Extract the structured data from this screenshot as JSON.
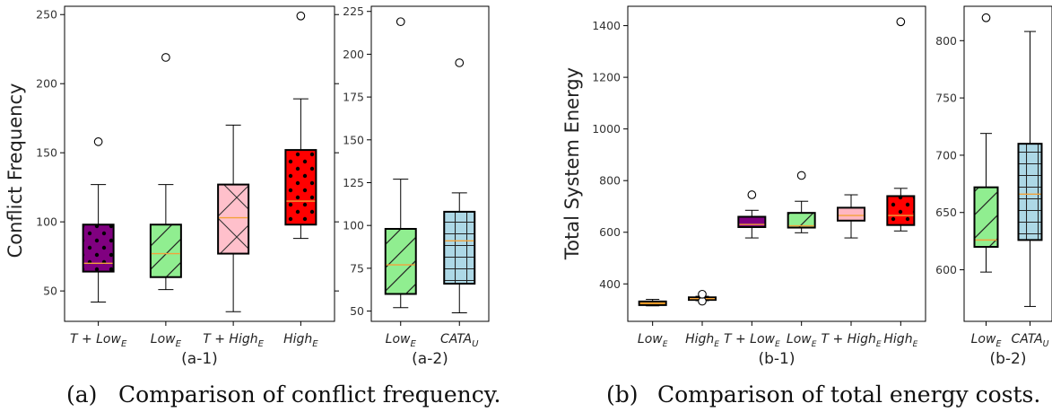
{
  "captions": {
    "a": {
      "label": "(a)",
      "text": "Comparison of conflict frequency."
    },
    "b": {
      "label": "(b)",
      "text": "Comparison of total energy costs."
    }
  },
  "colors": {
    "purple": "#800080",
    "lightgreen": "#90ee90",
    "pink": "#ffc0cb",
    "red": "#ff0000",
    "lightblue": "#add8e6",
    "orange": "#ffa500",
    "lightpink": "#ffb6c1"
  },
  "chart_data": [
    {
      "id": "a1",
      "type": "box",
      "subtitle": "(a-1)",
      "ylabel": "Conflict Frequency",
      "ylim": [
        28,
        256
      ],
      "yticks": [
        50,
        100,
        150,
        200,
        250
      ],
      "ytick_side": "left",
      "categories": [
        {
          "main": "T + Low",
          "sub": "E"
        },
        {
          "main": "Low",
          "sub": "E"
        },
        {
          "main": "T + High",
          "sub": "E"
        },
        {
          "main": "High",
          "sub": "E"
        }
      ],
      "boxes": [
        {
          "whislo": 42,
          "q1": 64,
          "med": 70,
          "q3": 98,
          "whishi": 127,
          "fliers": [
            158
          ],
          "color": "#800080",
          "hatch": "dots"
        },
        {
          "whislo": 51,
          "q1": 60,
          "med": 77,
          "q3": 98,
          "whishi": 127,
          "fliers": [
            219
          ],
          "color": "#90ee90",
          "hatch": "diag"
        },
        {
          "whislo": 35,
          "q1": 77,
          "med": 103,
          "q3": 127,
          "whishi": 170,
          "fliers": [],
          "color": "#ffc0cb",
          "hatch": "cross"
        },
        {
          "whislo": 88,
          "q1": 98,
          "med": 115,
          "q3": 152,
          "whishi": 189,
          "fliers": [
            249
          ],
          "color": "#ff0000",
          "hatch": "dots"
        }
      ]
    },
    {
      "id": "a2",
      "type": "box",
      "subtitle": "(a-2)",
      "ylabel": "",
      "ylim": [
        44,
        228
      ],
      "yticks": [
        50,
        75,
        100,
        125,
        150,
        175,
        200,
        225
      ],
      "ytick_side": "left",
      "categories": [
        {
          "main": "Low",
          "sub": "E"
        },
        {
          "main": "CATA",
          "sub": "U"
        }
      ],
      "boxes": [
        {
          "whislo": 52,
          "q1": 60,
          "med": 77,
          "q3": 98,
          "whishi": 127,
          "fliers": [
            219
          ],
          "color": "#90ee90",
          "hatch": "diag"
        },
        {
          "whislo": 49,
          "q1": 66,
          "med": 91,
          "q3": 108,
          "whishi": 119,
          "fliers": [
            195
          ],
          "color": "#add8e6",
          "hatch": "grid"
        }
      ]
    },
    {
      "id": "b1",
      "type": "box",
      "subtitle": "(b-1)",
      "ylabel": "Total System Energy",
      "ylim": [
        255,
        1475
      ],
      "yticks": [
        400,
        600,
        800,
        1000,
        1200,
        1400
      ],
      "ytick_side": "left",
      "categories": [
        {
          "main": "Low",
          "sub": "E"
        },
        {
          "main": "High",
          "sub": "E"
        },
        {
          "main": "T + Low",
          "sub": "E"
        },
        {
          "main": "Low",
          "sub": "E"
        },
        {
          "main": "T + High",
          "sub": "E"
        },
        {
          "main": "High",
          "sub": "E"
        }
      ],
      "boxes": [
        {
          "whislo": 315,
          "q1": 318,
          "med": 325,
          "q3": 332,
          "whishi": 340,
          "fliers": [],
          "color": "#ffa500",
          "hatch": "none"
        },
        {
          "whislo": 335,
          "q1": 338,
          "med": 343,
          "q3": 348,
          "whishi": 352,
          "fliers": [
            333,
            360
          ],
          "color": "#ffa500",
          "hatch": "none"
        },
        {
          "whislo": 578,
          "q1": 620,
          "med": 630,
          "q3": 660,
          "whishi": 685,
          "fliers": [
            745
          ],
          "color": "#800080",
          "hatch": "none"
        },
        {
          "whislo": 598,
          "q1": 618,
          "med": 625,
          "q3": 675,
          "whishi": 720,
          "fliers": [
            820
          ],
          "color": "#90ee90",
          "hatch": "diag"
        },
        {
          "whislo": 578,
          "q1": 645,
          "med": 665,
          "q3": 695,
          "whishi": 745,
          "fliers": [],
          "color": "#ffb6c1",
          "hatch": "none"
        },
        {
          "whislo": 605,
          "q1": 628,
          "med": 665,
          "q3": 740,
          "whishi": 770,
          "fliers": [
            1415
          ],
          "color": "#ff0000",
          "hatch": "dots"
        }
      ]
    },
    {
      "id": "b2",
      "type": "box",
      "subtitle": "(b-2)",
      "ylabel": "",
      "ylim": [
        555,
        830
      ],
      "yticks": [
        600,
        650,
        700,
        750,
        800
      ],
      "ytick_side": "left",
      "categories": [
        {
          "main": "Low",
          "sub": "E"
        },
        {
          "main": "CATA",
          "sub": "U"
        }
      ],
      "boxes": [
        {
          "whislo": 598,
          "q1": 620,
          "med": 626,
          "q3": 672,
          "whishi": 719,
          "fliers": [
            820
          ],
          "color": "#90ee90",
          "hatch": "diag"
        },
        {
          "whislo": 568,
          "q1": 626,
          "med": 666,
          "q3": 710,
          "whishi": 808,
          "fliers": [],
          "color": "#add8e6",
          "hatch": "grid"
        }
      ]
    }
  ]
}
